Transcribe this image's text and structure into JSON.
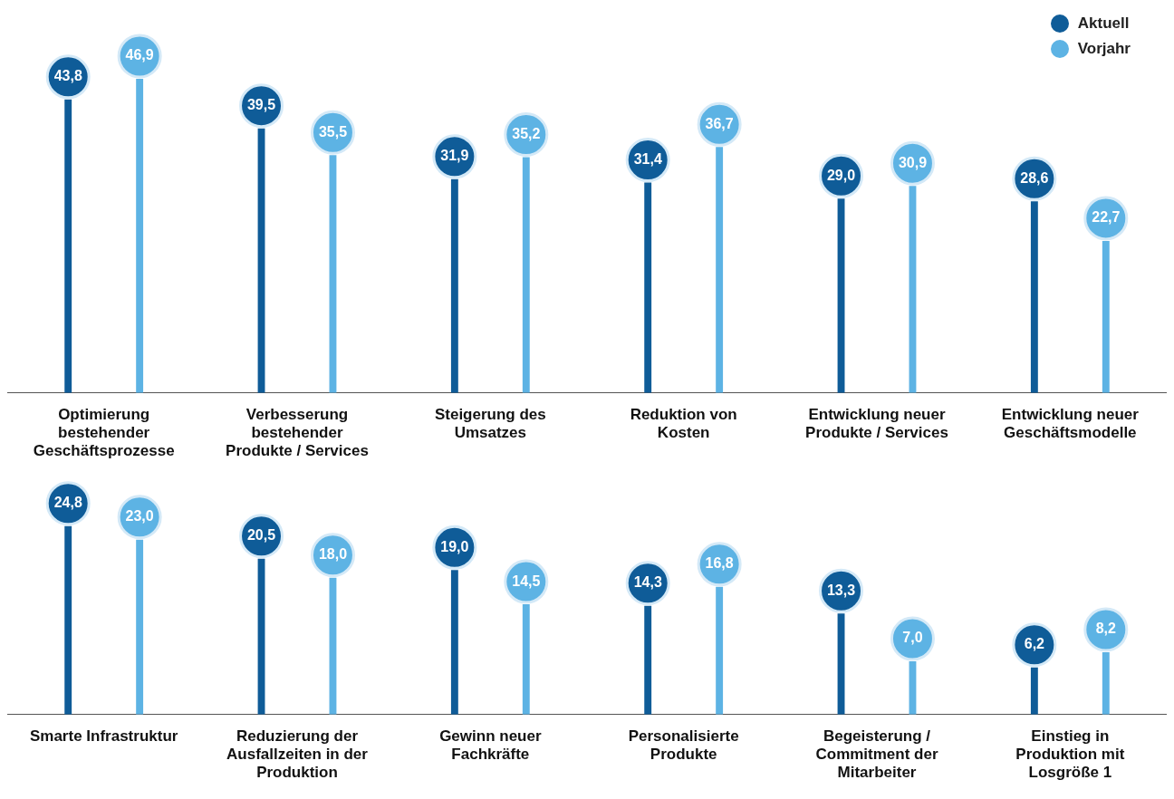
{
  "chart_data": [
    {
      "type": "bar",
      "categories": [
        "Optimierung bestehender Geschäftsprozesse",
        "Verbesserung bestehender Produkte / Services",
        "Steigerung des Umsatzes",
        "Reduktion von Kosten",
        "Entwicklung neuer Produkte / Services",
        "Entwicklung neuer Geschäftsmodelle"
      ],
      "series": [
        {
          "name": "Aktuell",
          "color": "#0f5c98",
          "values": [
            43.8,
            39.5,
            31.9,
            31.4,
            29.0,
            28.6
          ],
          "value_labels": [
            "43,8",
            "39,5",
            "31,9",
            "31,4",
            "29,0",
            "28,6"
          ]
        },
        {
          "name": "Vorjahr",
          "color": "#5db3e4",
          "values": [
            46.9,
            35.5,
            35.2,
            36.7,
            30.9,
            22.7
          ],
          "value_labels": [
            "46,9",
            "35,5",
            "35,2",
            "36,7",
            "30,9",
            "22,7"
          ]
        }
      ],
      "tick_labels": "x",
      "marker": "circle",
      "legend": "top right",
      "grid": false
    },
    {
      "type": "bar",
      "categories": [
        "Smarte Infrastruktur",
        "Reduzierung der Ausfallzeiten in der Produktion",
        "Gewinn neuer Fachkräfte",
        "Personalisierte Produkte",
        "Begeisterung / Commitment der Mitarbeiter",
        "Einstieg in Produktion mit Losgröße 1"
      ],
      "series": [
        {
          "color": "#0f5c98",
          "values": [
            24.8,
            20.5,
            19.0,
            14.3,
            13.3,
            6.2
          ],
          "value_labels": [
            "24,8",
            "20,5",
            "19,0",
            "14,3",
            "13,3",
            "6,2"
          ]
        },
        {
          "color": "#5db3e4",
          "values": [
            23.0,
            18.0,
            14.5,
            16.8,
            7.0,
            8.2
          ],
          "value_labels": [
            "23,0",
            "18,0",
            "14,5",
            "16,8",
            "7,0",
            "8,2"
          ]
        }
      ],
      "tick_labels": "x",
      "marker": "circle",
      "grid": false
    }
  ]
}
